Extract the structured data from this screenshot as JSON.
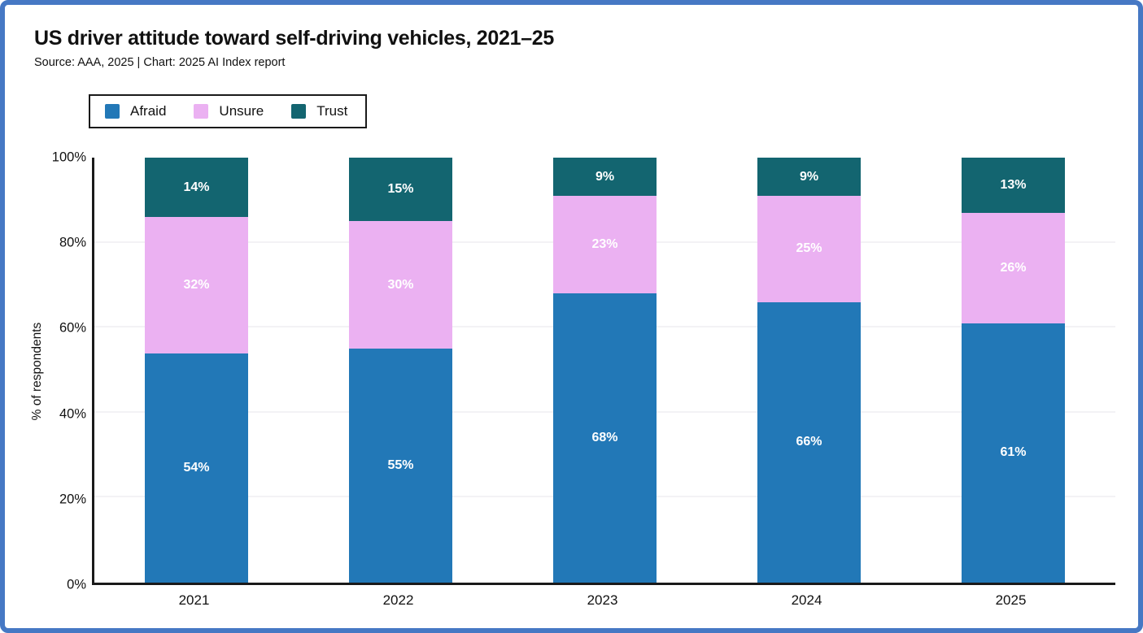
{
  "header": {
    "subtitle": "Source: AAA, 2025 | Chart: 2025 AI Index report"
  },
  "colors": {
    "frame_border": "#4678c4",
    "axis": "#1a1a1a",
    "gridline": "#f3f2f5",
    "value_label": "#ffffff",
    "afraid": "#2278b7",
    "unsure": "#ebb1f2",
    "trust": "#136570"
  },
  "chart_data": {
    "type": "bar",
    "stacked": true,
    "title": "US driver attitude toward self-driving vehicles, 2021–25",
    "xlabel": "",
    "ylabel": "% of respondents",
    "categories": [
      "2021",
      "2022",
      "2023",
      "2024",
      "2025"
    ],
    "series": [
      {
        "name": "Afraid",
        "color": "#2278b7",
        "values": [
          54,
          55,
          68,
          66,
          61
        ]
      },
      {
        "name": "Unsure",
        "color": "#ebb1f2",
        "values": [
          32,
          30,
          23,
          25,
          26
        ]
      },
      {
        "name": "Trust",
        "color": "#136570",
        "values": [
          14,
          15,
          9,
          9,
          13
        ]
      }
    ],
    "ylim": [
      0,
      100
    ],
    "yticks": [
      "0%",
      "20%",
      "40%",
      "60%",
      "80%",
      "100%"
    ],
    "grid": true,
    "legend_position": "top-left",
    "value_label_format": "{value}%"
  }
}
